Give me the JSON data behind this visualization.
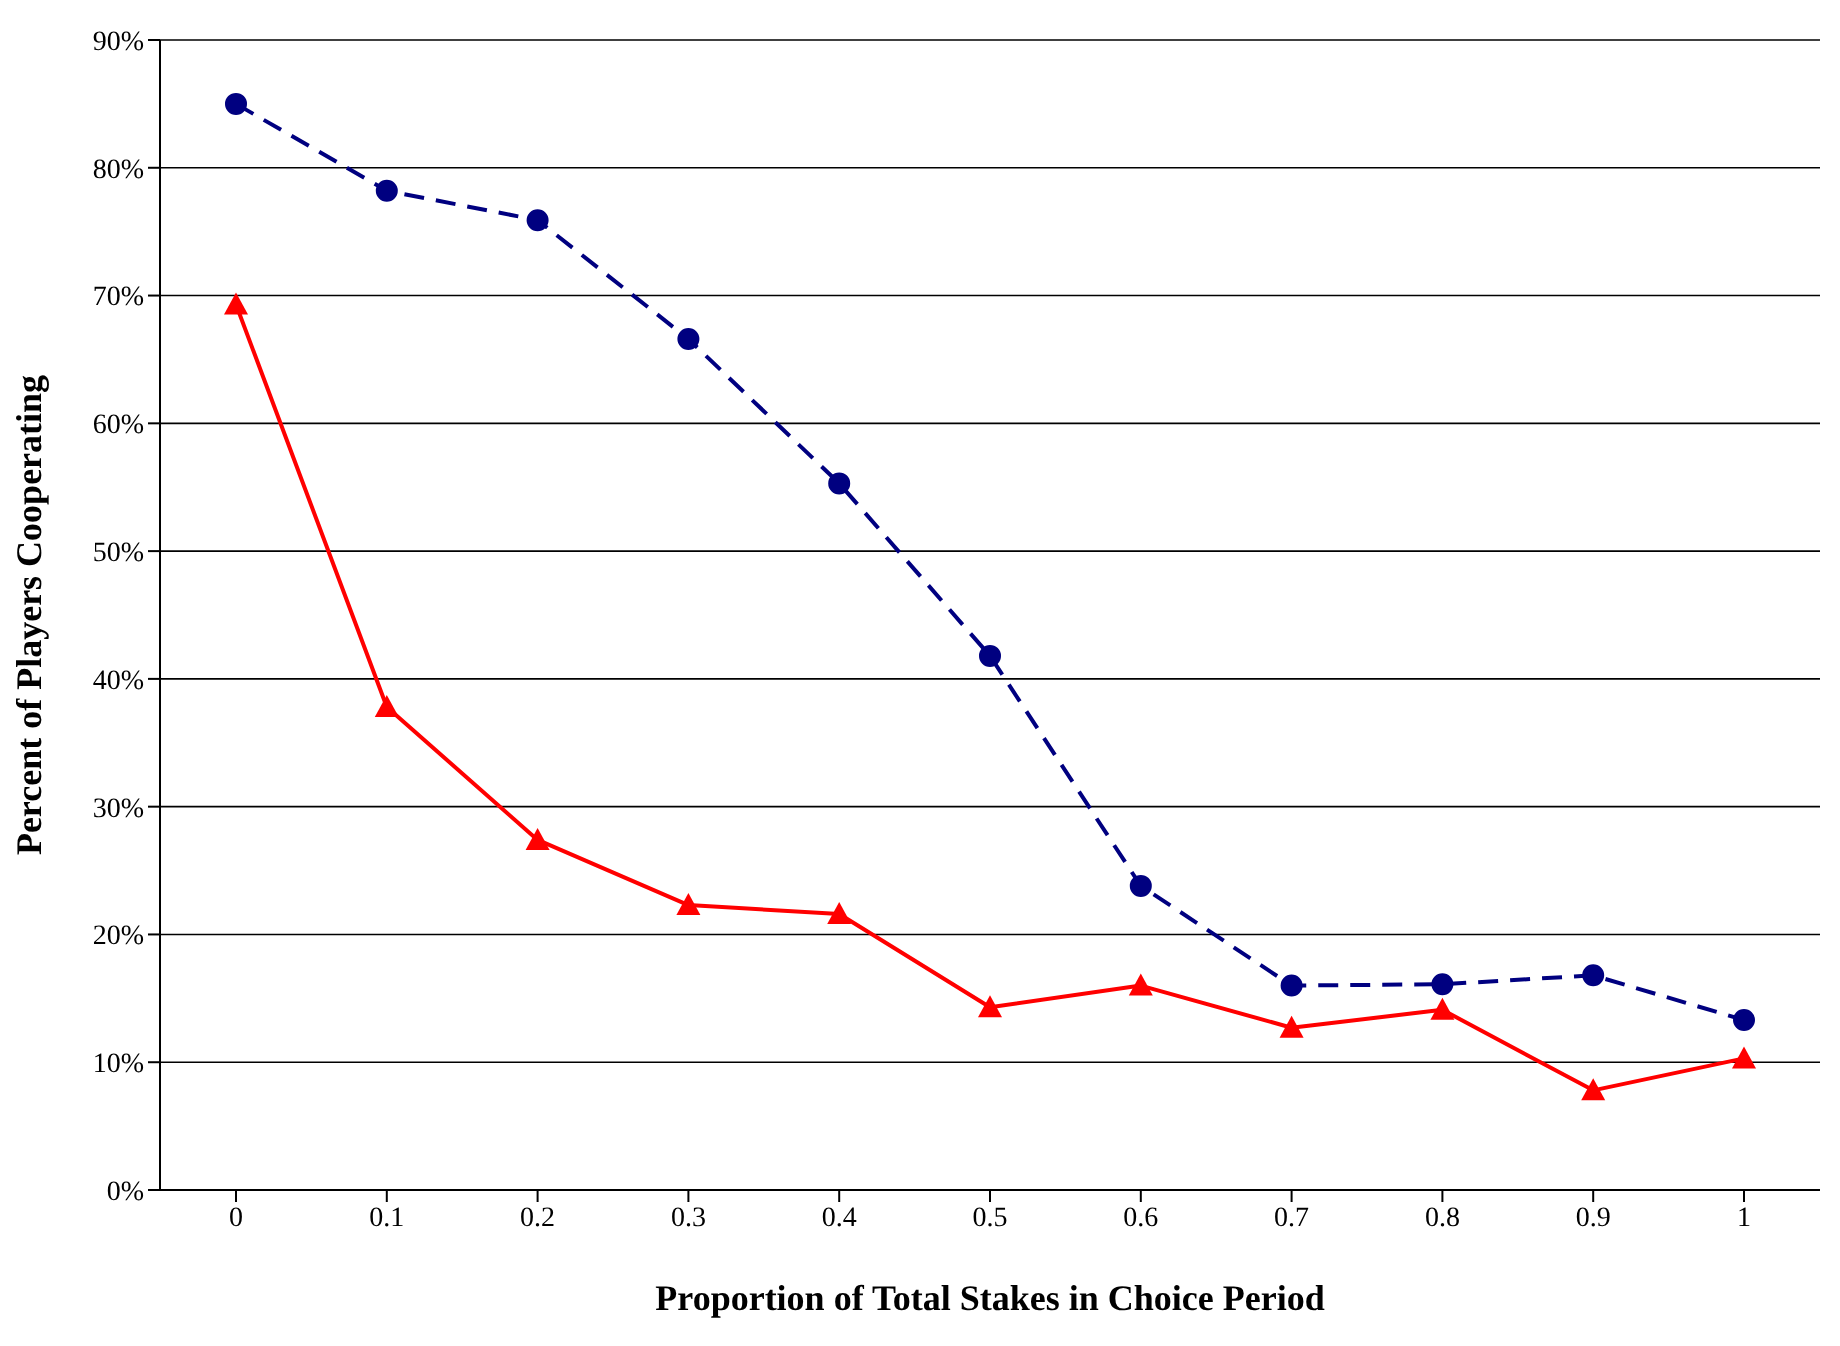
{
  "chart_data": {
    "type": "line",
    "xlabel": "Proportion of Total Stakes in Choice Period",
    "ylabel": "Percent of Players Cooperating",
    "categories": [
      "0",
      "0.1",
      "0.2",
      "0.3",
      "0.4",
      "0.5",
      "0.6",
      "0.7",
      "0.8",
      "0.9",
      "1"
    ],
    "series": [
      {
        "color": "#000080",
        "marker": "circle",
        "line_style": "dashed",
        "values": [
          85,
          78.2,
          75.9,
          66.6,
          55.3,
          41.8,
          23.8,
          16.0,
          16.1,
          16.8,
          13.3
        ]
      },
      {
        "color": "#ff0000",
        "marker": "triangle",
        "line_style": "solid",
        "values": [
          69.3,
          37.8,
          27.4,
          22.3,
          21.6,
          14.3,
          16.0,
          12.7,
          14.1,
          7.8,
          10.3
        ]
      }
    ],
    "ylim": [
      0,
      90
    ],
    "yticks": [
      {
        "value": 0,
        "label": "0%"
      },
      {
        "value": 10,
        "label": "10%"
      },
      {
        "value": 20,
        "label": "20%"
      },
      {
        "value": 30,
        "label": "30%"
      },
      {
        "value": 40,
        "label": "40%"
      },
      {
        "value": 50,
        "label": "50%"
      },
      {
        "value": 60,
        "label": "60%"
      },
      {
        "value": 70,
        "label": "70%"
      },
      {
        "value": 80,
        "label": "80%"
      },
      {
        "value": 90,
        "label": "90%"
      }
    ],
    "grid": "y",
    "legend": false
  }
}
